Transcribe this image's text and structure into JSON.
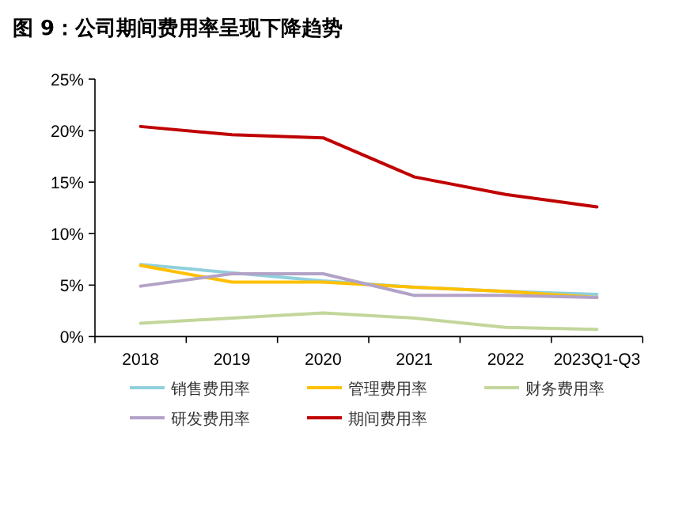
{
  "chart_data": {
    "type": "line",
    "title": "图 9：公司期间费用率呈现下降趋势",
    "categories": [
      "2018",
      "2019",
      "2020",
      "2021",
      "2022",
      "2023Q1-Q3"
    ],
    "series": [
      {
        "name": "销售费用率",
        "color": "#8fd0dc",
        "values": [
          7.0,
          6.2,
          5.4,
          4.8,
          4.4,
          4.1
        ]
      },
      {
        "name": "管理费用率",
        "color": "#ffc000",
        "values": [
          6.9,
          5.3,
          5.3,
          4.8,
          4.4,
          3.8
        ]
      },
      {
        "name": "财务费用率",
        "color": "#c3d69b",
        "values": [
          1.3,
          1.8,
          2.3,
          1.8,
          0.9,
          0.7
        ]
      },
      {
        "name": "研发费用率",
        "color": "#b3a2c7",
        "values": [
          4.9,
          6.1,
          6.1,
          4.0,
          4.0,
          3.8
        ]
      },
      {
        "name": "期间费用率",
        "color": "#c00000",
        "values": [
          20.4,
          19.6,
          19.3,
          15.5,
          13.8,
          12.6
        ]
      }
    ],
    "ylim": [
      0,
      25
    ],
    "yticks": [
      {
        "value": 0,
        "label": "0%"
      },
      {
        "value": 5,
        "label": "5%"
      },
      {
        "value": 10,
        "label": "10%"
      },
      {
        "value": 15,
        "label": "15%"
      },
      {
        "value": 20,
        "label": "20%"
      },
      {
        "value": 25,
        "label": "25%"
      }
    ],
    "grid": false,
    "legend": "bottom",
    "marker": "none",
    "line_style": "solid"
  }
}
